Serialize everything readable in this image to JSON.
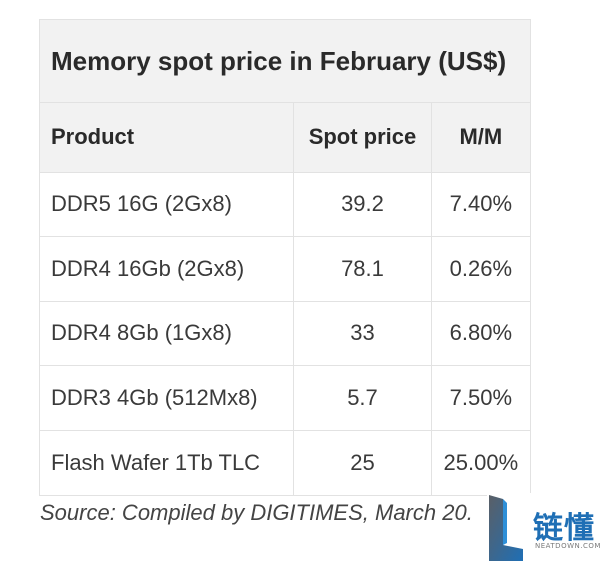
{
  "table": {
    "title": "Memory spot price in February (US$)",
    "headers": [
      "Product",
      "Spot price",
      "M/M"
    ],
    "rows": [
      [
        "DDR5 16G (2Gx8)",
        "39.2",
        "7.40%"
      ],
      [
        "DDR4 16Gb (2Gx8)",
        "78.1",
        "0.26%"
      ],
      [
        "DDR4 8Gb (1Gx8)",
        "33",
        "6.80%"
      ],
      [
        "DDR3 4Gb (512Mx8)",
        "5.7",
        "7.50%"
      ],
      [
        "Flash Wafer 1Tb TLC",
        "25",
        "25.00%"
      ]
    ]
  },
  "source": "Source: Compiled by DIGITIMES, March 20.",
  "watermark": {
    "text_cn": "链懂",
    "text_en": "NEATDOWN.COM",
    "icon": "letter-L-logo-icon",
    "colors": {
      "accent": "#1f6fb5"
    }
  },
  "colors": {
    "header_bg": "#f2f2f2",
    "border": "#e2e2e2",
    "text": "#333333"
  }
}
